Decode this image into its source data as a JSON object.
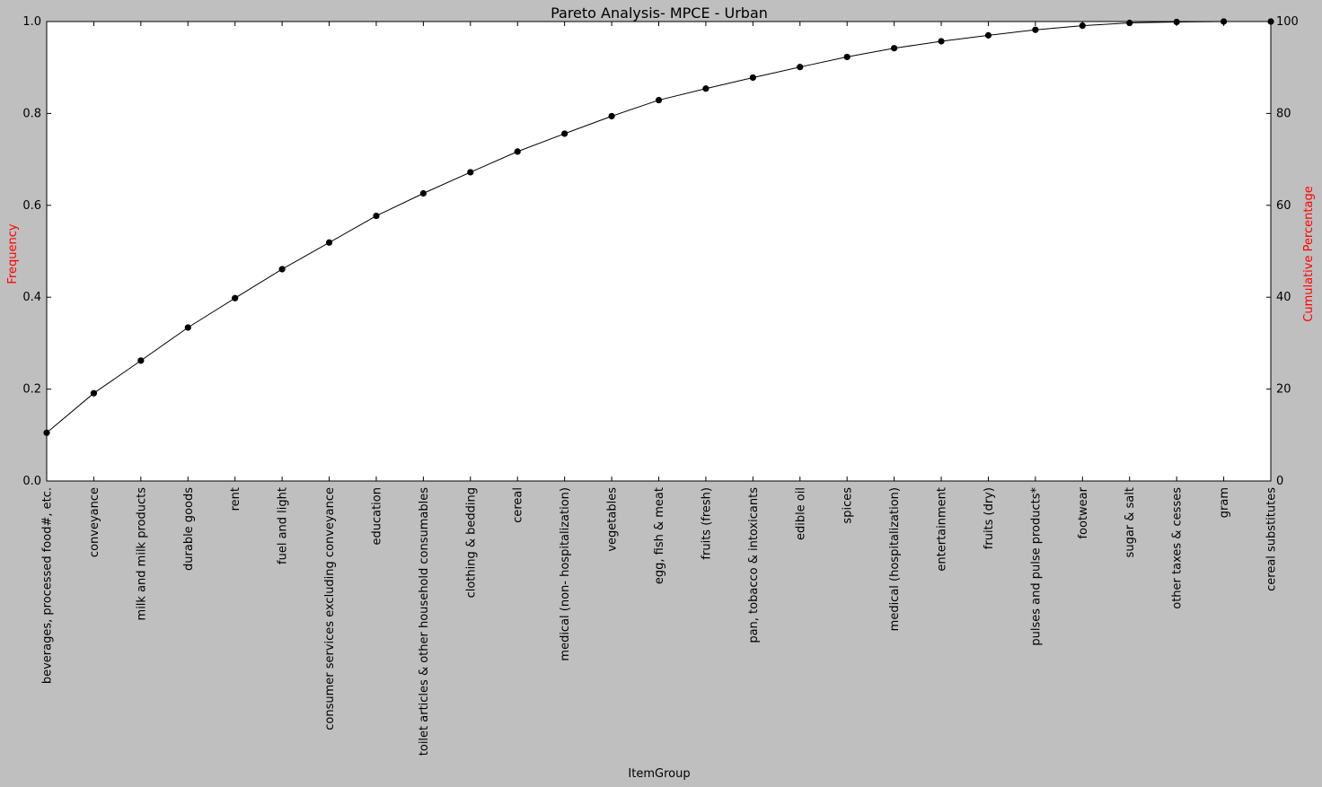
{
  "chart_data": {
    "type": "line",
    "title": "Pareto Analysis- MPCE - Urban",
    "xlabel": "ItemGroup",
    "ylabel_left": "Frequency",
    "ylabel_right": "Cumulative Percentage",
    "ylabel_color": "#ff0000",
    "ylim_left": [
      0,
      1.0
    ],
    "ylim_right": [
      0,
      100
    ],
    "yticks_left": [
      "0.0",
      "0.2",
      "0.4",
      "0.6",
      "0.8",
      "1.0"
    ],
    "yticks_right": [
      "0",
      "20",
      "40",
      "60",
      "80",
      "100"
    ],
    "grid": false,
    "line_color": "#000000",
    "marker": "circle",
    "categories": [
      "beverages, processed food#, etc.",
      "conveyance",
      "milk and milk products",
      "durable goods",
      "rent",
      "fuel and light",
      "consumer services excluding conveyance",
      "education",
      "toilet articles & other household consumables",
      "clothing & bedding",
      "cereal",
      "medical (non- hospitalization)",
      "vegetables",
      "egg, fish & meat",
      "fruits (fresh)",
      "pan, tobacco & intoxicants",
      "edible oil",
      "spices",
      "medical (hospitalization)",
      "entertainment",
      "fruits (dry)",
      "pulses and pulse products*",
      "footwear",
      "sugar & salt",
      "other taxes & cesses",
      "gram",
      "cereal substitutes"
    ],
    "series": [
      {
        "axis": "right",
        "values": [
          10.5,
          19.1,
          26.2,
          33.4,
          39.8,
          46.1,
          51.9,
          57.7,
          62.6,
          67.2,
          71.7,
          75.6,
          79.4,
          82.9,
          85.4,
          87.8,
          90.1,
          92.3,
          94.2,
          95.7,
          97.0,
          98.2,
          99.1,
          99.7,
          99.9,
          100.0,
          100.0
        ]
      }
    ]
  }
}
